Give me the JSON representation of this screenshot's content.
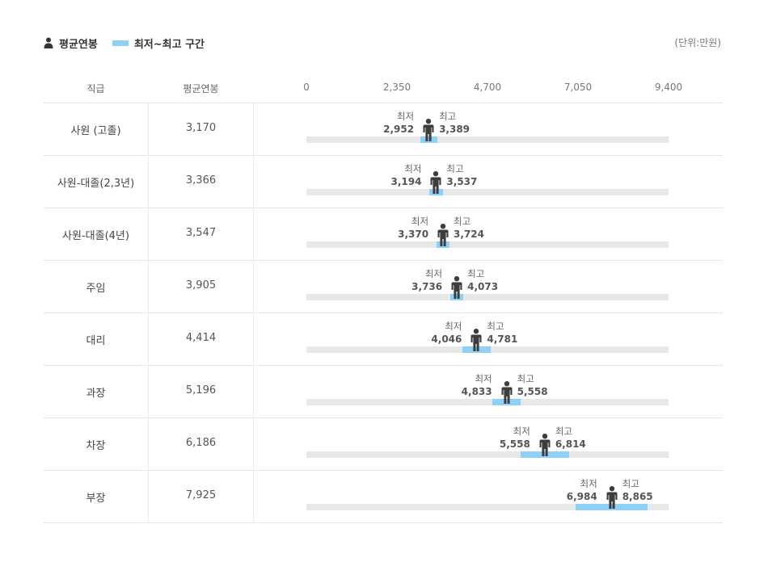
{
  "legend": {
    "average_label": "평균연봉",
    "range_label": "최저~최고 구간",
    "unit": "(단위:만원)"
  },
  "header": {
    "col_rank": "직급",
    "col_avg": "평균연봉"
  },
  "chart_data": {
    "type": "range-dot",
    "axis": {
      "min": 0,
      "max": 9400,
      "ticks": [
        "0",
        "2,350",
        "4,700",
        "7,050",
        "9,400"
      ]
    },
    "min_caption": "최저",
    "max_caption": "최고",
    "colors": {
      "range": "#8fd0f7",
      "track": "#e8e8e8",
      "marker": "#3d3d3d"
    },
    "rows": [
      {
        "rank": "사원 (고졸)",
        "avg": 3170,
        "avg_label": "3,170",
        "min": 2952,
        "min_label": "2,952",
        "max": 3389,
        "max_label": "3,389"
      },
      {
        "rank": "사원-대졸(2,3년)",
        "avg": 3366,
        "avg_label": "3,366",
        "min": 3194,
        "min_label": "3,194",
        "max": 3537,
        "max_label": "3,537"
      },
      {
        "rank": "사원-대졸(4년)",
        "avg": 3547,
        "avg_label": "3,547",
        "min": 3370,
        "min_label": "3,370",
        "max": 3724,
        "max_label": "3,724"
      },
      {
        "rank": "주임",
        "avg": 3905,
        "avg_label": "3,905",
        "min": 3736,
        "min_label": "3,736",
        "max": 4073,
        "max_label": "4,073"
      },
      {
        "rank": "대리",
        "avg": 4414,
        "avg_label": "4,414",
        "min": 4046,
        "min_label": "4,046",
        "max": 4781,
        "max_label": "4,781"
      },
      {
        "rank": "과장",
        "avg": 5196,
        "avg_label": "5,196",
        "min": 4833,
        "min_label": "4,833",
        "max": 5558,
        "max_label": "5,558"
      },
      {
        "rank": "차장",
        "avg": 6186,
        "avg_label": "6,186",
        "min": 5558,
        "min_label": "5,558",
        "max": 6814,
        "max_label": "6,814"
      },
      {
        "rank": "부장",
        "avg": 7925,
        "avg_label": "7,925",
        "min": 6984,
        "min_label": "6,984",
        "max": 8865,
        "max_label": "8,865"
      }
    ]
  }
}
